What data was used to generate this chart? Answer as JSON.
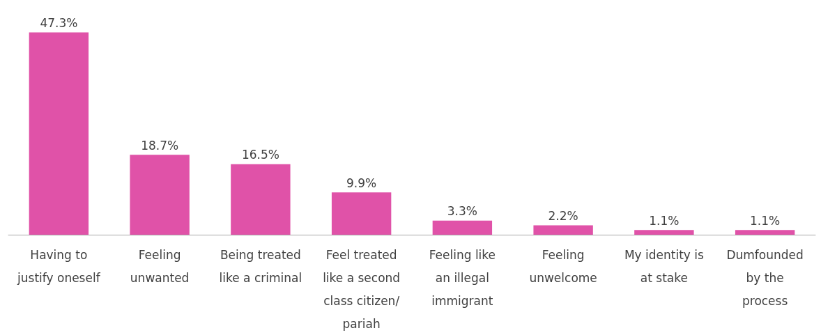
{
  "chart_data": {
    "type": "bar",
    "categories": [
      "Having to\njustify oneself",
      "Feeling\nunwanted",
      "Being treated\nlike a criminal",
      "Feel treated\nlike a second\nclass citizen/\npariah",
      "Feeling like\nan illegal\nimmigrant",
      "Feeling\nunwelcome",
      "My identity is\nat stake",
      "Dumfounded\nby the\nprocess"
    ],
    "values": [
      47.3,
      18.7,
      16.5,
      9.9,
      3.3,
      2.2,
      1.1,
      1.1
    ],
    "value_labels": [
      "47.3%",
      "18.7%",
      "16.5%",
      "9.9%",
      "3.3%",
      "2.2%",
      "1.1%",
      "1.1%"
    ],
    "color": "#e052a8"
  }
}
